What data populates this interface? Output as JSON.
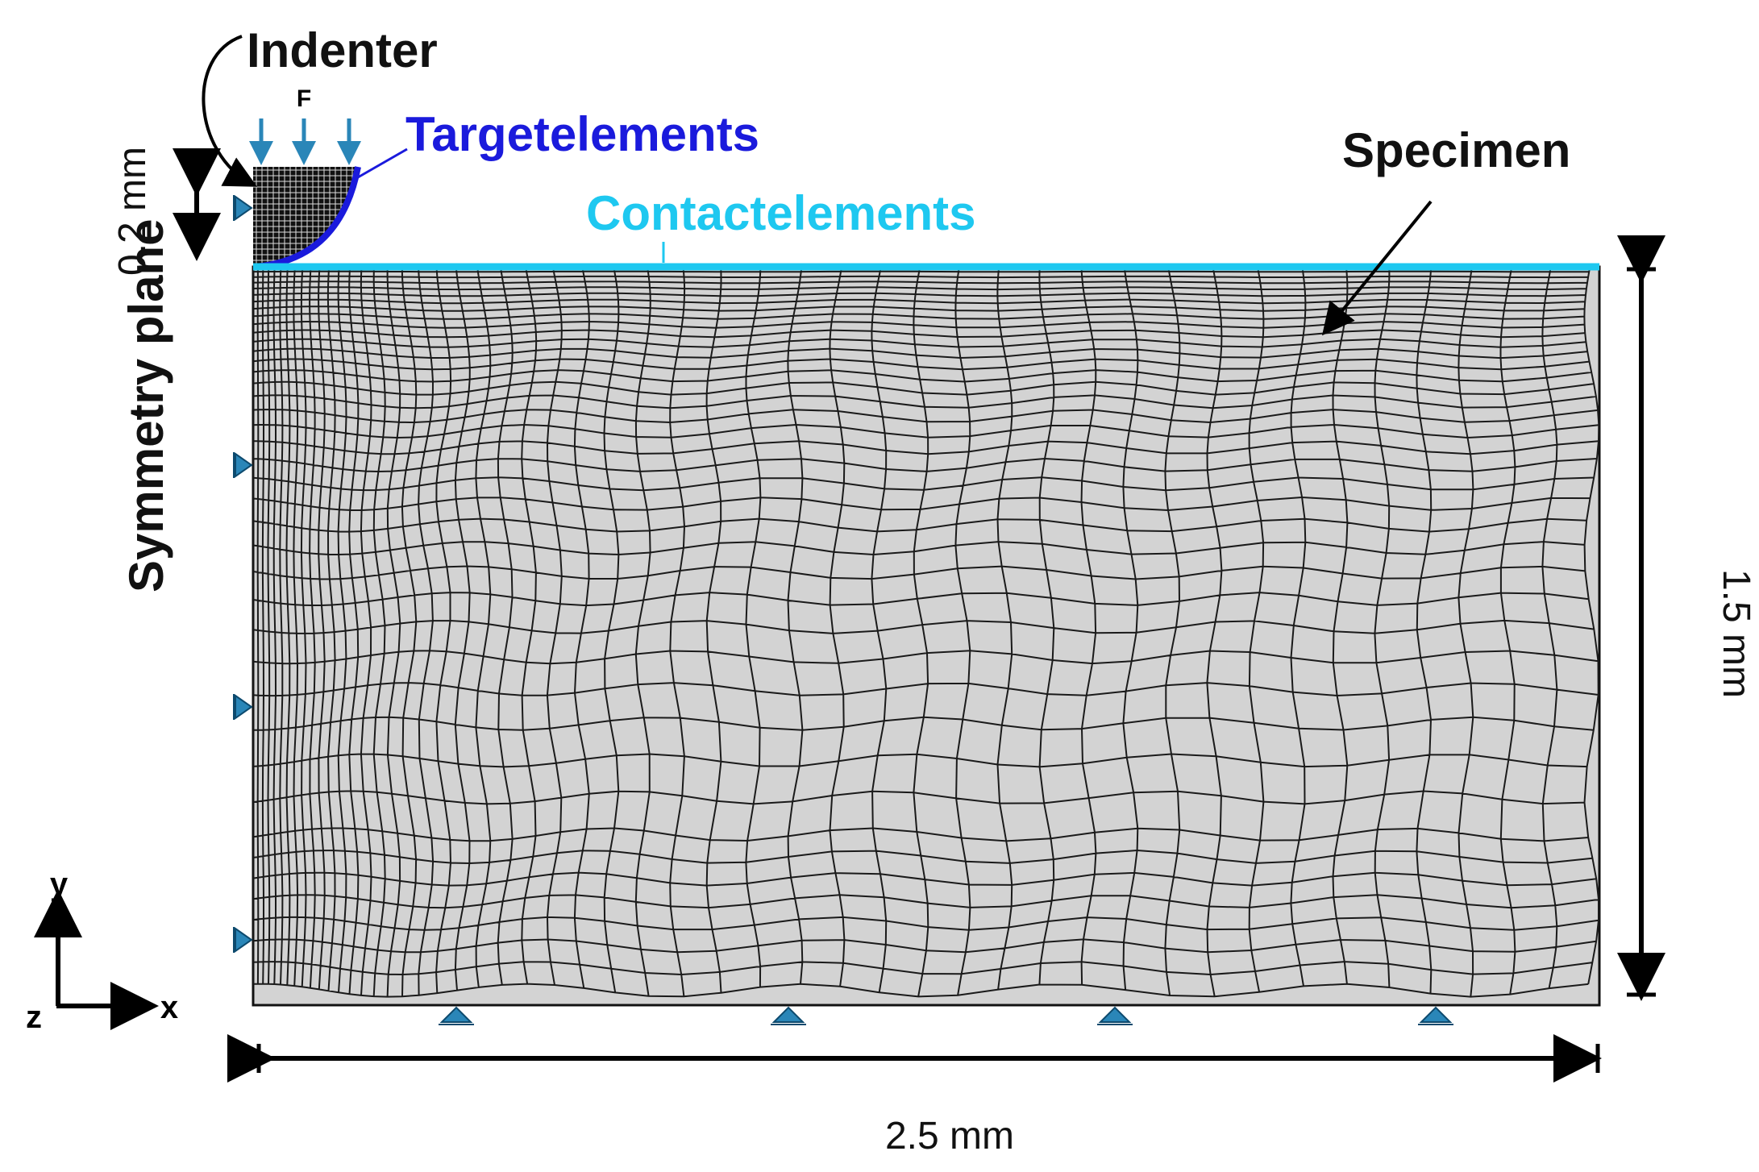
{
  "labels": {
    "indenter": "Indenter",
    "force": "F",
    "target_elements": "Targetelements",
    "contact_elements": "Contactelements",
    "specimen": "Specimen",
    "symmetry_plane": "Symmetry plane"
  },
  "dimensions": {
    "indenter_height": "0.2 mm",
    "specimen_height": "1.5 mm",
    "specimen_width": "2.5 mm"
  },
  "axes": {
    "y": "y",
    "x": "x",
    "z": "z"
  }
}
